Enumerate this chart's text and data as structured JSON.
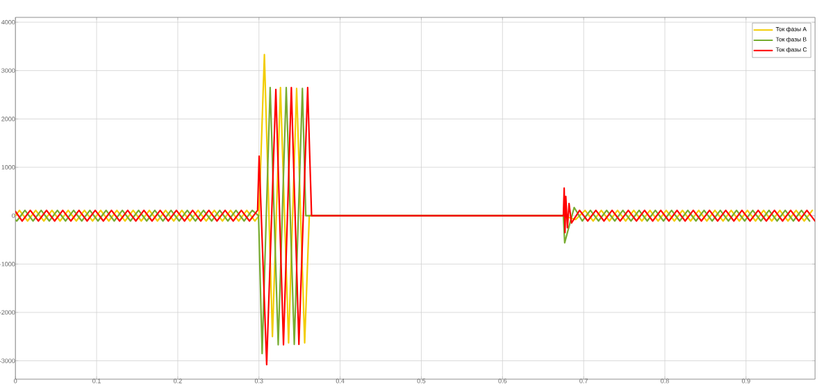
{
  "chart_data": {
    "type": "line",
    "xlim": [
      0,
      0.985
    ],
    "ylim": [
      -3380,
      4100
    ],
    "xticks": [
      0,
      0.1,
      0.2,
      0.3,
      0.4,
      0.5,
      0.6,
      0.7,
      0.8,
      0.9
    ],
    "yticks": [
      -3000,
      -2000,
      -1000,
      0,
      1000,
      2000,
      3000,
      4000
    ],
    "grid": true,
    "legend": "top right",
    "series": [
      {
        "name": "Ток фазы A",
        "color": "#f2cc00",
        "x": [
          0,
          0.005,
          0.015,
          0.025,
          0.035,
          0.045,
          0.055,
          0.065,
          0.075,
          0.085,
          0.095,
          0.105,
          0.115,
          0.125,
          0.135,
          0.145,
          0.155,
          0.165,
          0.175,
          0.185,
          0.195,
          0.205,
          0.215,
          0.225,
          0.235,
          0.245,
          0.255,
          0.265,
          0.275,
          0.285,
          0.295,
          0.3,
          0.3067,
          0.3166,
          0.3265,
          0.3365,
          0.3464,
          0.3563,
          0.362,
          0.675,
          0.69,
          0.7017,
          0.7117,
          0.7217,
          0.7317,
          0.7417,
          0.7517,
          0.7617,
          0.7717,
          0.7817,
          0.7917,
          0.8017,
          0.8117,
          0.8217,
          0.8317,
          0.8417,
          0.8517,
          0.8617,
          0.8717,
          0.8817,
          0.8917,
          0.9017,
          0.9117,
          0.9217,
          0.9317,
          0.9417,
          0.9517,
          0.9617,
          0.9717,
          0.9817
        ],
        "values": [
          0,
          110,
          -110,
          110,
          -110,
          110,
          -110,
          110,
          -110,
          110,
          -110,
          110,
          -110,
          110,
          -110,
          110,
          -110,
          110,
          -110,
          110,
          -110,
          110,
          -110,
          110,
          -110,
          110,
          -110,
          110,
          -110,
          110,
          -110,
          0,
          3330,
          -2500,
          2650,
          -2630,
          2630,
          -2630,
          0,
          0,
          -80,
          110,
          -110,
          110,
          -110,
          110,
          -110,
          110,
          -110,
          110,
          -110,
          110,
          -110,
          110,
          -110,
          110,
          -110,
          110,
          -110,
          110,
          -110,
          110,
          -110,
          110,
          -110,
          110,
          -110,
          110,
          -110,
          110
        ]
      },
      {
        "name": "Ток фазы B",
        "color": "#77ac30",
        "x": [
          0,
          0.0017,
          0.0117,
          0.0217,
          0.0317,
          0.0417,
          0.0517,
          0.0617,
          0.0717,
          0.0817,
          0.0917,
          0.1017,
          0.1117,
          0.1217,
          0.1317,
          0.1417,
          0.1517,
          0.1617,
          0.1717,
          0.1817,
          0.1917,
          0.2017,
          0.2117,
          0.2217,
          0.2317,
          0.2417,
          0.2517,
          0.2617,
          0.2717,
          0.2817,
          0.2917,
          0.2995,
          0.3039,
          0.3138,
          0.3237,
          0.3336,
          0.3435,
          0.3535,
          0.3577,
          0.675,
          0.6766,
          0.6883,
          0.6983,
          0.7083,
          0.7183,
          0.7283,
          0.7383,
          0.7483,
          0.7583,
          0.7683,
          0.7783,
          0.7883,
          0.7983,
          0.8083,
          0.8183,
          0.8283,
          0.8383,
          0.8483,
          0.8583,
          0.8683,
          0.8783,
          0.8883,
          0.8983,
          0.9083,
          0.9183,
          0.9283,
          0.9383,
          0.9483,
          0.9583,
          0.9683,
          0.9783
        ],
        "values": [
          -90,
          -110,
          110,
          -110,
          110,
          -110,
          110,
          -110,
          110,
          -110,
          110,
          -110,
          110,
          -110,
          110,
          -110,
          110,
          -110,
          110,
          -110,
          110,
          -110,
          110,
          -110,
          110,
          -110,
          110,
          -110,
          110,
          -110,
          110,
          0,
          -2850,
          2650,
          -2670,
          2650,
          -2660,
          2630,
          0,
          0,
          -560,
          170,
          -110,
          110,
          -110,
          110,
          -110,
          110,
          -110,
          110,
          -110,
          110,
          -110,
          110,
          -110,
          110,
          -110,
          110,
          -110,
          110,
          -110,
          110,
          -110,
          110,
          -110,
          110,
          -110,
          110,
          -110,
          110,
          -110
        ]
      },
      {
        "name": "Ток фазы C",
        "color": "#ff0000",
        "x": [
          0,
          0.0083,
          0.0183,
          0.0283,
          0.0383,
          0.0483,
          0.0583,
          0.0683,
          0.0783,
          0.0883,
          0.0983,
          0.1083,
          0.1183,
          0.1283,
          0.1383,
          0.1483,
          0.1583,
          0.1683,
          0.1783,
          0.1883,
          0.1983,
          0.2083,
          0.2183,
          0.2283,
          0.2383,
          0.2483,
          0.2583,
          0.2683,
          0.2783,
          0.2883,
          0.2983,
          0.3002,
          0.3095,
          0.3208,
          0.3302,
          0.3399,
          0.3492,
          0.36,
          0.3648,
          0.675,
          0.676,
          0.677,
          0.678,
          0.68,
          0.682,
          0.685,
          0.695,
          0.705,
          0.715,
          0.725,
          0.735,
          0.745,
          0.755,
          0.765,
          0.775,
          0.785,
          0.795,
          0.805,
          0.815,
          0.825,
          0.835,
          0.845,
          0.855,
          0.865,
          0.875,
          0.885,
          0.895,
          0.905,
          0.915,
          0.925,
          0.935,
          0.945,
          0.955,
          0.965,
          0.975,
          0.985
        ],
        "values": [
          90,
          -110,
          110,
          -110,
          110,
          -110,
          110,
          -110,
          110,
          -110,
          110,
          -110,
          110,
          -110,
          110,
          -110,
          110,
          -110,
          110,
          -110,
          110,
          -110,
          110,
          -110,
          110,
          -110,
          110,
          -110,
          110,
          -110,
          110,
          1230,
          -3080,
          2610,
          -2670,
          2650,
          -2660,
          2650,
          0,
          0,
          570,
          -350,
          400,
          -250,
          250,
          -150,
          110,
          -110,
          110,
          -110,
          110,
          -110,
          110,
          -110,
          110,
          -110,
          110,
          -110,
          110,
          -110,
          110,
          -110,
          110,
          -110,
          110,
          -110,
          110,
          -110,
          110,
          -110,
          110,
          -110,
          110,
          -110,
          110,
          -110
        ]
      }
    ]
  }
}
